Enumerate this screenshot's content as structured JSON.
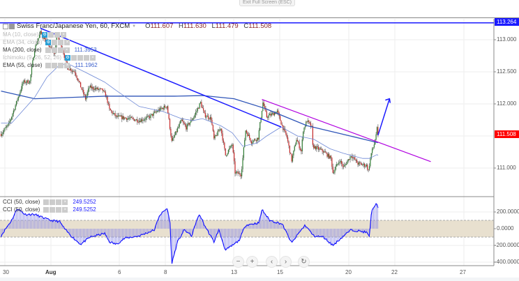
{
  "toolbar": {
    "exit_fullscreen": "Exit Full Screen (ESC)"
  },
  "symbol": {
    "title": "Swiss Franc/Japanese Yen, 60, FXCM",
    "open_label": "O",
    "open": "111.607",
    "high_label": "H",
    "high": "111.630",
    "low_label": "L",
    "low": "111.479",
    "close_label": "C",
    "close": "111.508"
  },
  "indicators": [
    {
      "label": "MA (10, close)",
      "value": ""
    },
    {
      "label": "EMA (34, close)",
      "value": ""
    },
    {
      "label": "MA (200, close)",
      "value": "111.3953"
    },
    {
      "label": "Ichimoku (9, 26, 52, 26)",
      "value": ""
    },
    {
      "label": "EMA (55, close)",
      "value": "111.1962"
    }
  ],
  "cci_legends": [
    {
      "label": "CCI (50, close)",
      "value": "249.5252"
    },
    {
      "label": "CCI (50, close)",
      "value": "249.5252"
    }
  ],
  "nav_buttons": {
    "zoom_out": "−",
    "zoom_in": "+",
    "back": "‹",
    "forward": "›",
    "reset": "↻"
  },
  "colors": {
    "up": "#2e7d32",
    "down": "#c62828",
    "trendline": "#1a1aff",
    "resistance": "#b000e0",
    "ma200": "#2f55b8",
    "ema55": "#6d88d6",
    "cci": "#1a1aff",
    "cci_band": "#e8e0cf",
    "last_price_tag": "#ff0000",
    "hline_tag": "#1a1aff"
  },
  "chart_data": [
    {
      "type": "candlestick",
      "title": "Swiss Franc/Japanese Yen, 60, FXCM",
      "x_ticks": [
        "30",
        "Aug",
        "6",
        "8",
        "13",
        "15",
        "20",
        "22",
        "27"
      ],
      "y_ticks": [
        "113.000",
        "112.500",
        "112.000",
        "111.000"
      ],
      "ylim": [
        110.75,
        113.35
      ],
      "grid": true,
      "last_price": "111.508",
      "horizontal_line": "113.264",
      "close_path": [
        [
          "Jul 27 20:00",
          111.53
        ],
        [
          "Jul 30 04:00",
          111.68
        ],
        [
          "Jul 30 12:00",
          112.02
        ],
        [
          "Jul 30 19:00",
          112.34
        ],
        [
          "Jul 31 02:00",
          112.35
        ],
        [
          "Jul 31 07:00",
          112.86
        ],
        [
          "Jul 31 13:00",
          113.11
        ],
        [
          "Jul 31 20:00",
          112.95
        ],
        [
          "Aug 1 04:00",
          112.78
        ],
        [
          "Aug 1 06:00",
          113.08
        ],
        [
          "Aug 1 12:00",
          112.86
        ],
        [
          "Aug 1 17:00",
          112.57
        ],
        [
          "Aug 2 01:00",
          112.5
        ],
        [
          "Aug 2 08:00",
          112.23
        ],
        [
          "Aug 2 12:00",
          112.08
        ],
        [
          "Aug 2 16:00",
          112.26
        ],
        [
          "Aug 3 06:00",
          112.21
        ],
        [
          "Aug 3 10:00",
          112.1
        ],
        [
          "Aug 3 13:00",
          111.91
        ],
        [
          "Aug 3 20:00",
          111.8
        ],
        [
          "Aug 6 11:00",
          111.77
        ],
        [
          "Aug 6 20:00",
          111.74
        ],
        [
          "Aug 7 06:00",
          111.79
        ],
        [
          "Aug 7 16:00",
          111.9
        ],
        [
          "Aug 8 01:00",
          111.97
        ],
        [
          "Aug 8 06:00",
          111.41
        ],
        [
          "Aug 8 16:00",
          111.74
        ],
        [
          "Aug 8 21:00",
          111.63
        ],
        [
          "Aug 9 05:00",
          111.8
        ],
        [
          "Aug 9 12:00",
          112.02
        ],
        [
          "Aug 9 16:00",
          111.83
        ],
        [
          "Aug 9 23:00",
          111.77
        ],
        [
          "Aug 10 02:00",
          111.45
        ],
        [
          "Aug 10 09:00",
          111.63
        ],
        [
          "Aug 10 14:00",
          111.2
        ],
        [
          "Aug 10 21:00",
          111.37
        ],
        [
          "Aug 13 00:00",
          110.93
        ],
        [
          "Aug 13 06:00",
          110.9
        ],
        [
          "Aug 13 07:00",
          111.01
        ],
        [
          "Aug 13 11:00",
          111.59
        ],
        [
          "Aug 13 17:00",
          111.41
        ],
        [
          "Aug 14 00:00",
          111.47
        ],
        [
          "Aug 14 05:00",
          112.02
        ],
        [
          "Aug 14 09:00",
          111.8
        ],
        [
          "Aug 14 20:00",
          111.88
        ],
        [
          "Aug 15 01:00",
          111.66
        ],
        [
          "Aug 15 06:00",
          111.48
        ],
        [
          "Aug 15 11:00",
          111.12
        ],
        [
          "Aug 15 16:00",
          111.45
        ],
        [
          "Aug 15 21:00",
          111.26
        ],
        [
          "Aug 15 23:00",
          111.59
        ],
        [
          "Aug 16 03:00",
          111.74
        ],
        [
          "Aug 16 08:00",
          111.63
        ],
        [
          "Aug 16 09:00",
          111.34
        ],
        [
          "Aug 16 20:00",
          111.26
        ],
        [
          "Aug 17 04:00",
          111.15
        ],
        [
          "Aug 17 06:00",
          110.93
        ],
        [
          "Aug 17 13:00",
          111.12
        ],
        [
          "Aug 17 17:00",
          111.01
        ],
        [
          "Aug 20 01:00",
          111.2
        ],
        [
          "Aug 20 08:00",
          111.07
        ],
        [
          "Aug 20 17:00",
          111.04
        ],
        [
          "Aug 20 19:00",
          110.96
        ],
        [
          "Aug 20 22:00",
          111.23
        ],
        [
          "Aug 21 01:00",
          111.37
        ],
        [
          "Aug 21 04:00",
          111.61
        ],
        [
          "Aug 21 05:00",
          111.508
        ]
      ],
      "ma200": [
        [
          "Jul 27 20:00",
          112.2
        ],
        [
          "Jul 31 07:00",
          112.08
        ],
        [
          "Aug 3 08:00",
          112.12
        ],
        [
          "Aug 8 09:00",
          112.12
        ],
        [
          "Aug 9 14:00",
          112.13
        ],
        [
          "Aug 10 23:00",
          112.08
        ],
        [
          "Aug 14 07:00",
          111.93
        ],
        [
          "Aug 16 03:00",
          111.66
        ],
        [
          "Aug 20 00:00",
          111.5
        ],
        [
          "Aug 21 05:00",
          111.3953
        ]
      ],
      "ema55": [
        [
          "Jul 27 20:00",
          111.7
        ],
        [
          "Jul 30 07:00",
          111.7
        ],
        [
          "Jul 31 07:00",
          112.1
        ],
        [
          "Jul 31 20:00",
          112.42
        ],
        [
          "Aug 1 10:00",
          112.62
        ],
        [
          "Aug 1 20:00",
          112.61
        ],
        [
          "Aug 2 11:00",
          112.5
        ],
        [
          "Aug 3 08:00",
          112.34
        ],
        [
          "Aug 3 20:00",
          112.21
        ],
        [
          "Aug 6 20:00",
          111.96
        ],
        [
          "Aug 7 21:00",
          111.88
        ],
        [
          "Aug 8 16:00",
          111.77
        ],
        [
          "Aug 9 04:00",
          111.74
        ],
        [
          "Aug 9 14:00",
          111.77
        ],
        [
          "Aug 10 09:00",
          111.66
        ],
        [
          "Aug 10 21:00",
          111.55
        ],
        [
          "Aug 13 08:00",
          111.34
        ],
        [
          "Aug 13 23:00",
          111.39
        ],
        [
          "Aug 14 09:00",
          111.5
        ],
        [
          "Aug 15 00:00",
          111.64
        ],
        [
          "Aug 15 17:00",
          111.5
        ],
        [
          "Aug 16 10:00",
          111.45
        ],
        [
          "Aug 17 03:00",
          111.3
        ],
        [
          "Aug 17 17:00",
          111.23
        ],
        [
          "Aug 20 13:00",
          111.15
        ],
        [
          "Aug 20 20:00",
          111.15
        ],
        [
          "Aug 21 04:00",
          111.21
        ],
        [
          "Aug 21 05:00",
          111.1962
        ]
      ],
      "drawings": {
        "trendline": [
          [
            "Jul 31 13:00",
            113.18
          ],
          [
            "Aug 15 00:00",
            111.64
          ]
        ],
        "resistance_line": [
          [
            "Aug 14 04:00",
            112.07
          ],
          [
            "Aug 23 12:00",
            111.1
          ]
        ],
        "arrow": [
          [
            "Aug 21 05:00",
            111.51
          ],
          [
            "Aug 21 17:00",
            112.08
          ]
        ]
      }
    },
    {
      "type": "area",
      "title": "CCI (50, close)",
      "y_ticks": [
        "200.0000",
        "0.0000",
        "-200.0000",
        "-400.0000"
      ],
      "ylim": [
        -420,
        370
      ],
      "band": [
        -100,
        100
      ],
      "last_value": "249.5252",
      "values": [
        [
          "Jul 27 20:00",
          -86
        ],
        [
          "Jul 30 00:00",
          -14
        ],
        [
          "Jul 30 07:00",
          100
        ],
        [
          "Jul 30 13:00",
          243
        ],
        [
          "Jul 30 21:00",
          171
        ],
        [
          "Jul 31 07:00",
          171
        ],
        [
          "Jul 31 23:00",
          100
        ],
        [
          "Aug 1 09:00",
          86
        ],
        [
          "Aug 1 15:00",
          -14
        ],
        [
          "Aug 2 01:00",
          -129
        ],
        [
          "Aug 2 07:00",
          -186
        ],
        [
          "Aug 2 17:00",
          -100
        ],
        [
          "Aug 3 08:00",
          -57
        ],
        [
          "Aug 3 13:00",
          -157
        ],
        [
          "Aug 3 20:00",
          -186
        ],
        [
          "Aug 6 05:00",
          -114
        ],
        [
          "Aug 6 20:00",
          -86
        ],
        [
          "Aug 7 12:00",
          -14
        ],
        [
          "Aug 7 17:00",
          157
        ],
        [
          "Aug 8 01:00",
          243
        ],
        [
          "Aug 8 04:00",
          100
        ],
        [
          "Aug 8 06:00",
          -414
        ],
        [
          "Aug 8 12:00",
          -157
        ],
        [
          "Aug 8 19:00",
          -14
        ],
        [
          "Aug 9 03:00",
          -86
        ],
        [
          "Aug 9 07:00",
          71
        ],
        [
          "Aug 9 11:00",
          171
        ],
        [
          "Aug 9 16:00",
          43
        ],
        [
          "Aug 10 02:00",
          -157
        ],
        [
          "Aug 10 07:00",
          -14
        ],
        [
          "Aug 10 14:00",
          -257
        ],
        [
          "Aug 10 23:00",
          -186
        ],
        [
          "Aug 13 04:00",
          -143
        ],
        [
          "Aug 13 11:00",
          43
        ],
        [
          "Aug 14 01:00",
          71
        ],
        [
          "Aug 14 04:00",
          229
        ],
        [
          "Aug 14 12:00",
          100
        ],
        [
          "Aug 15 01:00",
          57
        ],
        [
          "Aug 15 11:00",
          -171
        ],
        [
          "Aug 15 19:00",
          -43
        ],
        [
          "Aug 16 01:00",
          43
        ],
        [
          "Aug 16 10:00",
          -86
        ],
        [
          "Aug 16 20:00",
          -100
        ],
        [
          "Aug 17 06:00",
          -200
        ],
        [
          "Aug 17 17:00",
          -86
        ],
        [
          "Aug 20 01:00",
          -14
        ],
        [
          "Aug 20 17:00",
          -43
        ],
        [
          "Aug 20 20:00",
          -100
        ],
        [
          "Aug 20 22:00",
          186
        ],
        [
          "Aug 21 01:00",
          271
        ],
        [
          "Aug 21 04:00",
          300
        ],
        [
          "Aug 21 05:00",
          249.5252
        ]
      ]
    }
  ]
}
